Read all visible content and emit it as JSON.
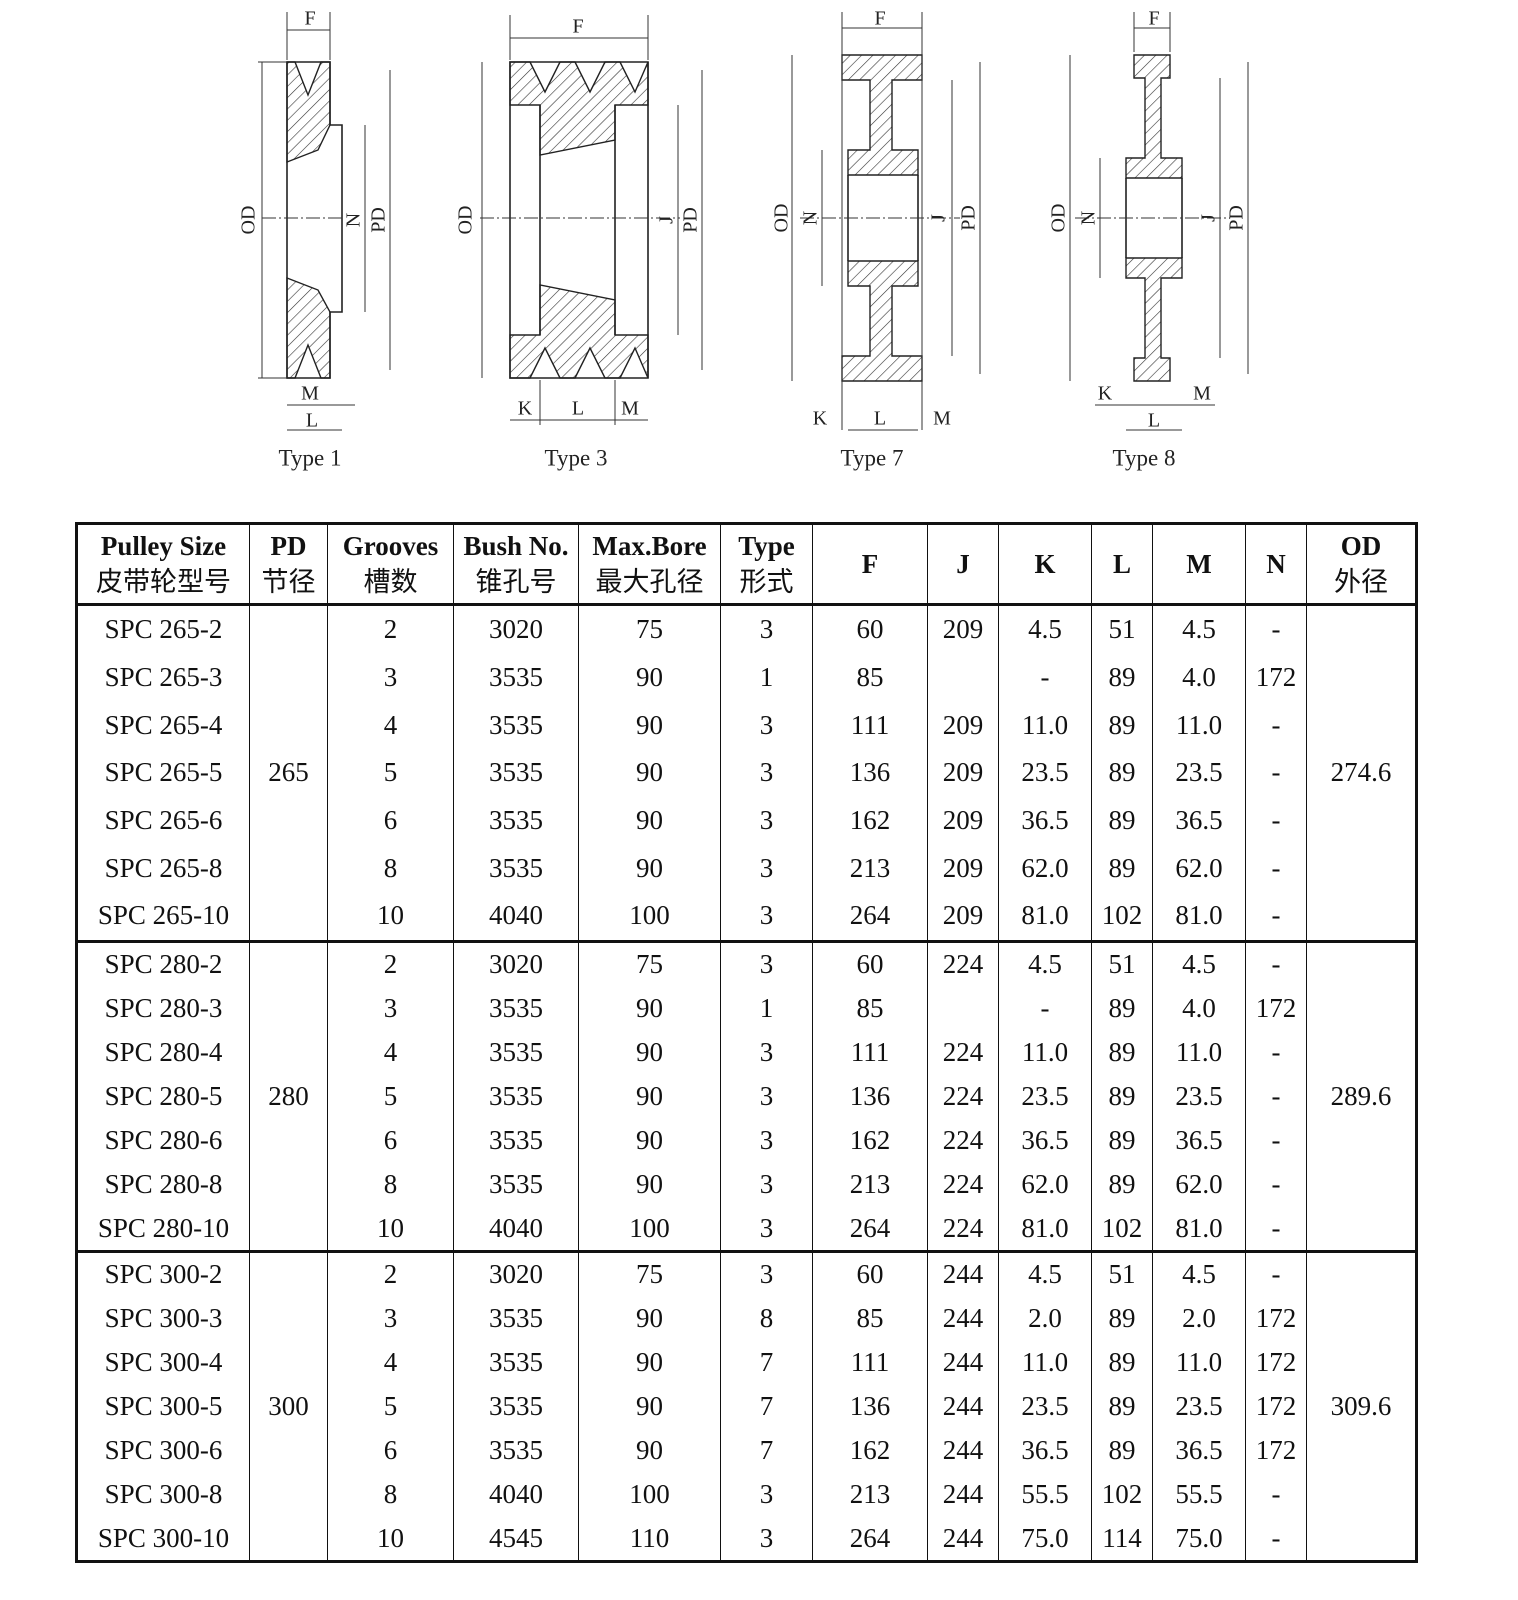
{
  "diagrams": [
    {
      "caption": "Type 1",
      "labels": [
        "F",
        "OD",
        "N",
        "PD",
        "M",
        "L"
      ]
    },
    {
      "caption": "Type 3",
      "labels": [
        "F",
        "OD",
        "J",
        "PD",
        "K",
        "L",
        "M"
      ]
    },
    {
      "caption": "Type 7",
      "labels": [
        "F",
        "OD",
        "N",
        "J",
        "PD",
        "K",
        "L",
        "M"
      ]
    },
    {
      "caption": "Type 8",
      "labels": [
        "F",
        "OD",
        "N",
        "J",
        "PD",
        "K",
        "L",
        "M"
      ]
    }
  ],
  "table": {
    "header": [
      [
        "Pulley Size",
        "皮带轮型号"
      ],
      [
        "PD",
        "节径"
      ],
      [
        "Grooves",
        "槽数"
      ],
      [
        "Bush No.",
        "锥孔号"
      ],
      [
        "Max.Bore",
        "最大孔径"
      ],
      [
        "Type",
        "形式"
      ],
      [
        "F"
      ],
      [
        "J"
      ],
      [
        "K"
      ],
      [
        "L"
      ],
      [
        "M"
      ],
      [
        "N"
      ],
      [
        "OD",
        "外径"
      ]
    ],
    "groups": [
      {
        "pd": "265",
        "od": "274.6",
        "rows": [
          [
            "SPC 265-2",
            "2",
            "3020",
            "75",
            "3",
            "60",
            "209",
            "4.5",
            "51",
            "4.5",
            "-"
          ],
          [
            "SPC 265-3",
            "3",
            "3535",
            "90",
            "1",
            "85",
            null,
            "-",
            "89",
            "4.0",
            "172"
          ],
          [
            "SPC 265-4",
            "4",
            "3535",
            "90",
            "3",
            "111",
            "209",
            "11.0",
            "89",
            "11.0",
            "-"
          ],
          [
            "SPC 265-5",
            "5",
            "3535",
            "90",
            "3",
            "136",
            "209",
            "23.5",
            "89",
            "23.5",
            "-"
          ],
          [
            "SPC 265-6",
            "6",
            "3535",
            "90",
            "3",
            "162",
            "209",
            "36.5",
            "89",
            "36.5",
            "-"
          ],
          [
            "SPC 265-8",
            "8",
            "3535",
            "90",
            "3",
            "213",
            "209",
            "62.0",
            "89",
            "62.0",
            "-"
          ],
          [
            "SPC 265-10",
            "10",
            "4040",
            "100",
            "3",
            "264",
            "209",
            "81.0",
            "102",
            "81.0",
            "-"
          ]
        ]
      },
      {
        "pd": "280",
        "od": "289.6",
        "rows": [
          [
            "SPC 280-2",
            "2",
            "3020",
            "75",
            "3",
            "60",
            "224",
            "4.5",
            "51",
            "4.5",
            "-"
          ],
          [
            "SPC 280-3",
            "3",
            "3535",
            "90",
            "1",
            "85",
            null,
            "-",
            "89",
            "4.0",
            "172"
          ],
          [
            "SPC 280-4",
            "4",
            "3535",
            "90",
            "3",
            "111",
            "224",
            "11.0",
            "89",
            "11.0",
            "-"
          ],
          [
            "SPC 280-5",
            "5",
            "3535",
            "90",
            "3",
            "136",
            "224",
            "23.5",
            "89",
            "23.5",
            "-"
          ],
          [
            "SPC 280-6",
            "6",
            "3535",
            "90",
            "3",
            "162",
            "224",
            "36.5",
            "89",
            "36.5",
            "-"
          ],
          [
            "SPC 280-8",
            "8",
            "3535",
            "90",
            "3",
            "213",
            "224",
            "62.0",
            "89",
            "62.0",
            "-"
          ],
          [
            "SPC 280-10",
            "10",
            "4040",
            "100",
            "3",
            "264",
            "224",
            "81.0",
            "102",
            "81.0",
            "-"
          ]
        ]
      },
      {
        "pd": "300",
        "od": "309.6",
        "rows": [
          [
            "SPC 300-2",
            "2",
            "3020",
            "75",
            "3",
            "60",
            "244",
            "4.5",
            "51",
            "4.5",
            "-"
          ],
          [
            "SPC 300-3",
            "3",
            "3535",
            "90",
            "8",
            "85",
            "244",
            "2.0",
            "89",
            "2.0",
            "172"
          ],
          [
            "SPC 300-4",
            "4",
            "3535",
            "90",
            "7",
            "111",
            "244",
            "11.0",
            "89",
            "11.0",
            "172"
          ],
          [
            "SPC 300-5",
            "5",
            "3535",
            "90",
            "7",
            "136",
            "244",
            "23.5",
            "89",
            "23.5",
            "172"
          ],
          [
            "SPC 300-6",
            "6",
            "3535",
            "90",
            "7",
            "162",
            "244",
            "36.5",
            "89",
            "36.5",
            "172"
          ],
          [
            "SPC 300-8",
            "8",
            "4040",
            "100",
            "3",
            "213",
            "244",
            "55.5",
            "102",
            "55.5",
            "-"
          ],
          [
            "SPC 300-10",
            "10",
            "4545",
            "110",
            "3",
            "264",
            "244",
            "75.0",
            "114",
            "75.0",
            "-"
          ]
        ]
      }
    ]
  }
}
